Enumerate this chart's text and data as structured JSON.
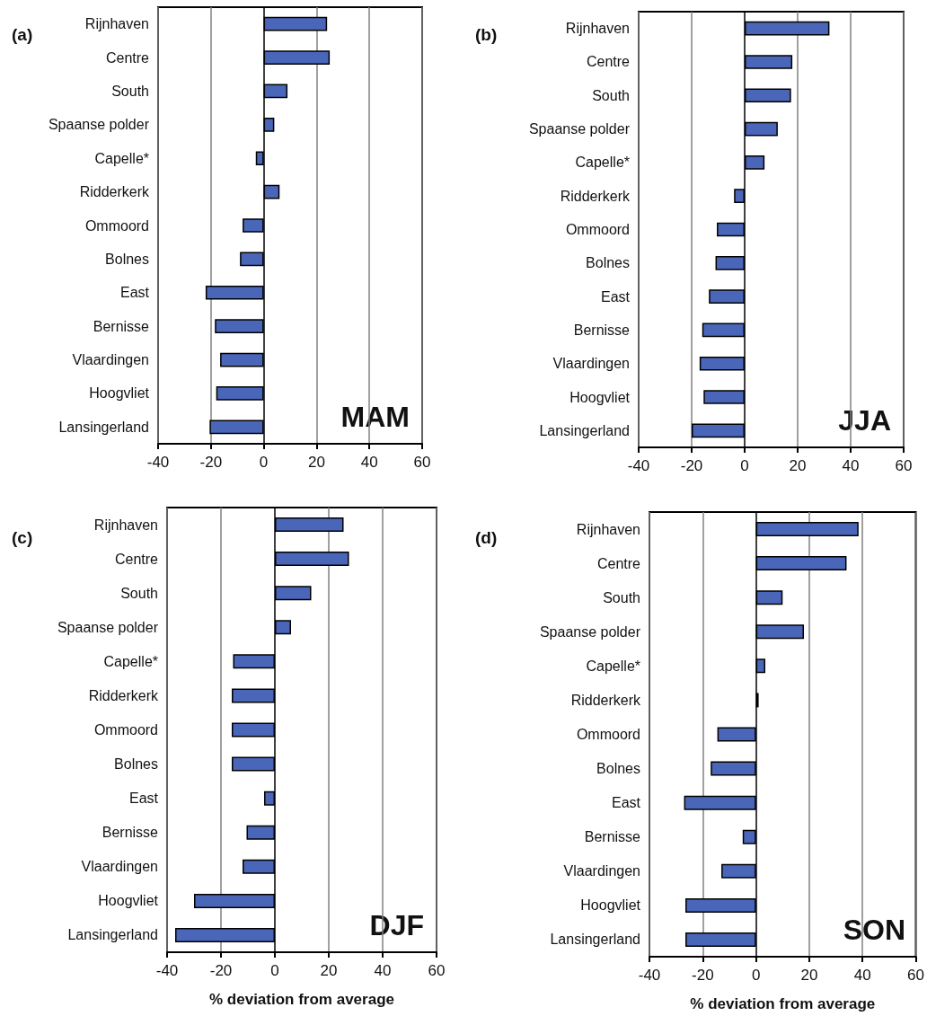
{
  "chart_data": [
    {
      "type": "bar",
      "orientation": "horizontal",
      "title": "(a)",
      "annotations": [
        "MAM"
      ],
      "categories": [
        "Rijnhaven",
        "Centre",
        "South",
        "Spaanse polder",
        "Capelle*",
        "Ridderkerk",
        "Ommoord",
        "Bolnes",
        "East",
        "Bernisse",
        "Vlaardingen",
        "Hoogvliet",
        "Lansingerland"
      ],
      "values": [
        24,
        25,
        9,
        4,
        -3,
        6,
        -8,
        -9,
        -22,
        -18.5,
        -16.5,
        -18,
        -20.5
      ],
      "color": "#4a66b8",
      "xlim": [
        -40,
        60
      ],
      "xticks": [
        -40,
        -20,
        0,
        20,
        40,
        60
      ],
      "grid": "x"
    },
    {
      "type": "bar",
      "orientation": "horizontal",
      "title": "(b)",
      "annotations": [
        "JJA"
      ],
      "categories": [
        "Rijnhaven",
        "Centre",
        "South",
        "Spaanse polder",
        "Capelle*",
        "Ridderkerk",
        "Ommoord",
        "Bolnes",
        "East",
        "Bernisse",
        "Vlaardingen",
        "Hoogvliet",
        "Lansingerland"
      ],
      "values": [
        32,
        18,
        17.5,
        12.5,
        7.5,
        -4,
        -10.5,
        -11,
        -13.5,
        -16,
        -17,
        -15.5,
        -20
      ],
      "color": "#4a66b8",
      "xlim": [
        -40,
        60
      ],
      "xticks": [
        -40,
        -20,
        0,
        20,
        40,
        60
      ],
      "grid": "x"
    },
    {
      "type": "bar",
      "orientation": "horizontal",
      "title": "(c)",
      "annotations": [
        "DJF"
      ],
      "xlabel": "% deviation from average",
      "categories": [
        "Rijnhaven",
        "Centre",
        "South",
        "Spaanse polder",
        "Capelle*",
        "Ridderkerk",
        "Ommoord",
        "Bolnes",
        "East",
        "Bernisse",
        "Vlaardingen",
        "Hoogvliet",
        "Lansingerland"
      ],
      "values": [
        25.5,
        27.5,
        13.5,
        6,
        -15.5,
        -16,
        -16,
        -16,
        -4,
        -10.5,
        -12,
        -30,
        -37
      ],
      "color": "#4a66b8",
      "xlim": [
        -40,
        60
      ],
      "xticks": [
        -40,
        -20,
        0,
        20,
        40,
        60
      ],
      "grid": "x"
    },
    {
      "type": "bar",
      "orientation": "horizontal",
      "title": "(d)",
      "annotations": [
        "SON"
      ],
      "xlabel": "% deviation from average",
      "categories": [
        "Rijnhaven",
        "Centre",
        "South",
        "Spaanse polder",
        "Capelle*",
        "Ridderkerk",
        "Ommoord",
        "Bolnes",
        "East",
        "Bernisse",
        "Vlaardingen",
        "Hoogvliet",
        "Lansingerland"
      ],
      "values": [
        38.5,
        34,
        10,
        18,
        3.5,
        1,
        -14.5,
        -17,
        -27,
        -5,
        -13,
        -26.5,
        -26.5
      ],
      "color": "#4a66b8",
      "xlim": [
        -40,
        60
      ],
      "xticks": [
        -40,
        -20,
        0,
        20,
        40,
        60
      ],
      "grid": "x"
    }
  ]
}
